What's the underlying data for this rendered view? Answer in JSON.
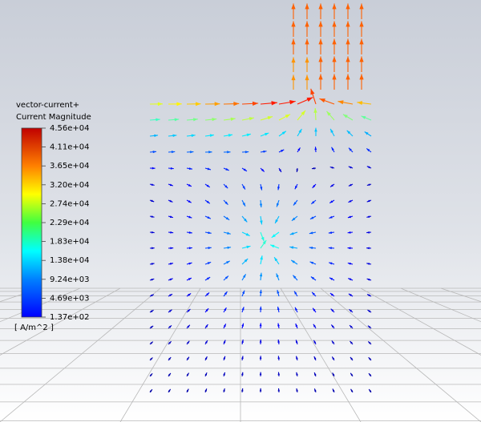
{
  "legend": {
    "title": [
      "vector-current+",
      "Current Magnitude"
    ],
    "labels": [
      "4.56e+04",
      "4.11e+04",
      "3.65e+04",
      "3.20e+04",
      "2.74e+04",
      "2.29e+04",
      "1.83e+04",
      "1.38e+04",
      "9.24e+03",
      "4.69e+03",
      "1.37e+02"
    ],
    "unit": "[ A/m^2 ]"
  }
}
